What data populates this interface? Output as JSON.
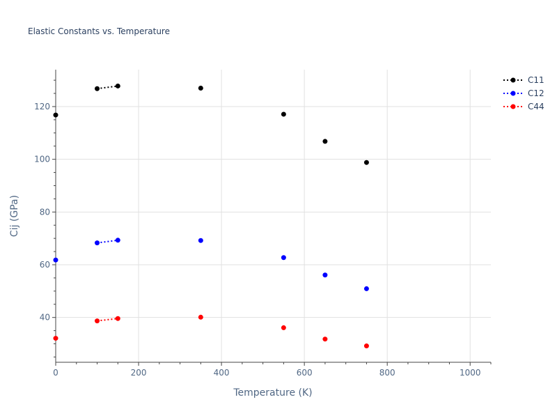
{
  "chart_data": {
    "type": "scatter",
    "title": "Elastic Constants vs. Temperature",
    "xlabel": "Temperature (K)",
    "ylabel": "Cij (GPa)",
    "xlim": [
      0,
      1050
    ],
    "ylim": [
      23,
      134
    ],
    "grid": true,
    "legend_position": "top-right",
    "x_ticks": [
      0,
      200,
      400,
      600,
      800,
      1000
    ],
    "y_ticks": [
      40,
      60,
      80,
      100,
      120
    ],
    "series": [
      {
        "name": "C11",
        "color": "#000000",
        "x": [
          0,
          100,
          150,
          350,
          550,
          650,
          750
        ],
        "y": [
          116.8,
          126.8,
          127.8,
          127.0,
          117.1,
          106.8,
          98.8
        ],
        "dotted_segment": [
          1,
          2
        ]
      },
      {
        "name": "C12",
        "color": "#0000ff",
        "x": [
          0,
          100,
          150,
          350,
          550,
          650,
          750
        ],
        "y": [
          61.8,
          68.3,
          69.3,
          69.2,
          62.7,
          56.1,
          50.9
        ],
        "dotted_segment": [
          1,
          2
        ]
      },
      {
        "name": "C44",
        "color": "#ff0000",
        "x": [
          0,
          100,
          150,
          350,
          550,
          650,
          750
        ],
        "y": [
          32.1,
          38.7,
          39.6,
          40.1,
          36.1,
          31.8,
          29.2
        ],
        "dotted_segment": [
          1,
          2
        ]
      }
    ]
  }
}
